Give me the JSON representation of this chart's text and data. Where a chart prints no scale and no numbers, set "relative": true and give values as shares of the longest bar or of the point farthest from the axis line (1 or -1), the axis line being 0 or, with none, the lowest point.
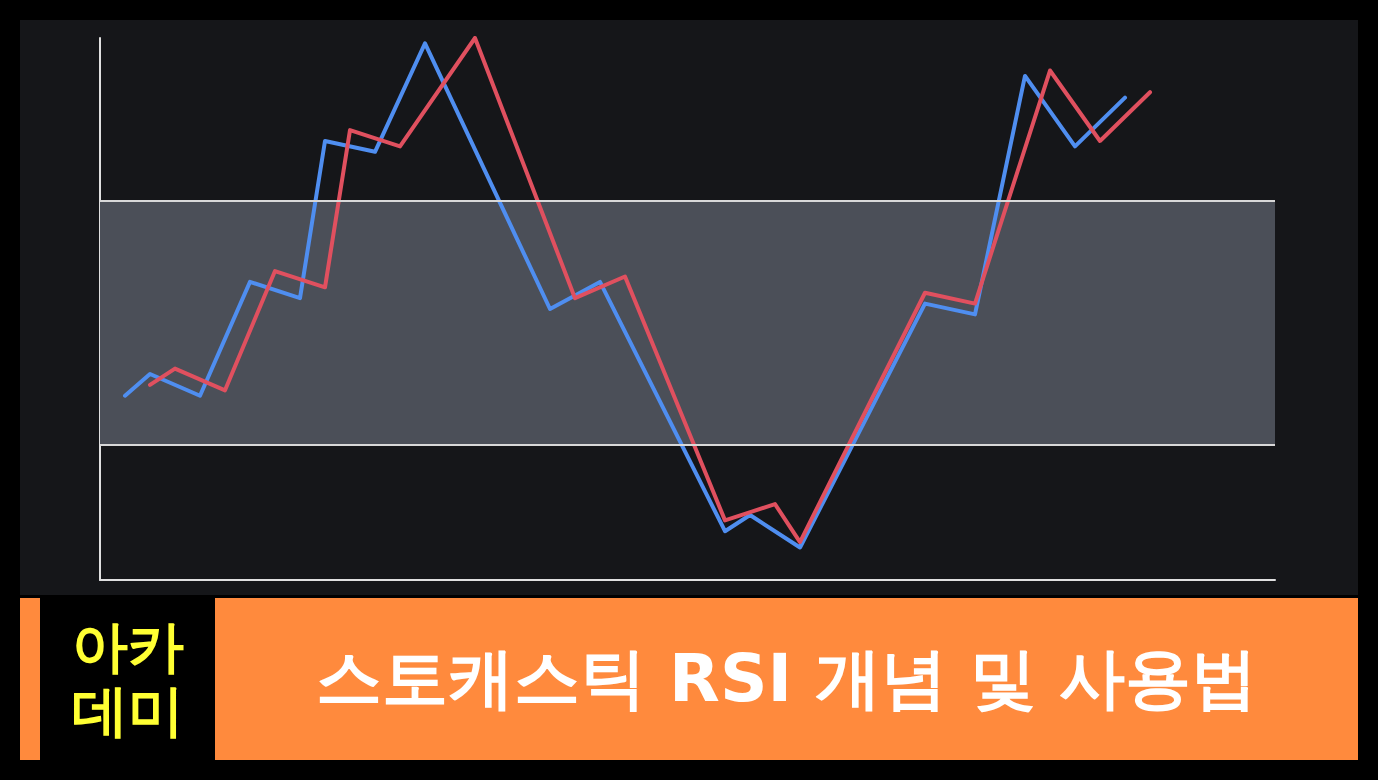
{
  "chart_data": {
    "type": "line",
    "title": "스토캐스틱 RSI 개념 및 사용법",
    "annotations": [
      "아카데미"
    ],
    "relative": true,
    "categories": [
      null,
      null,
      null,
      null,
      null,
      null,
      null,
      null,
      null,
      null,
      null,
      null,
      null,
      null,
      null,
      null,
      null,
      null,
      null,
      null,
      null,
      null,
      null,
      null,
      null,
      null,
      null,
      null,
      null,
      null,
      null,
      null,
      null,
      null,
      null,
      null,
      null,
      null,
      null,
      null,
      null,
      null,
      null,
      null,
      null,
      null,
      null,
      null
    ],
    "series": [
      {
        "color": "#4f8ef0",
        "values": [
          null,
          0.34,
          0.38,
          null,
          0.34,
          null,
          0.55,
          null,
          0.52,
          0.81,
          null,
          0.79,
          null,
          0.99,
          null,
          null,
          null,
          null,
          0.5,
          null,
          0.55,
          null,
          null,
          null,
          null,
          0.09,
          0.12,
          null,
          0.06,
          null,
          null,
          null,
          null,
          0.51,
          null,
          0.49,
          null,
          0.93,
          null,
          0.8,
          null,
          0.89,
          null,
          null,
          null,
          null,
          null,
          null
        ]
      },
      {
        "color": "#e0505f",
        "values": [
          null,
          null,
          0.36,
          0.39,
          null,
          0.35,
          null,
          0.57,
          null,
          0.54,
          0.83,
          null,
          0.8,
          null,
          null,
          1,
          null,
          null,
          null,
          0.52,
          null,
          0.56,
          null,
          null,
          null,
          0.11,
          null,
          0.14,
          0.07,
          null,
          null,
          null,
          null,
          0.53,
          null,
          0.51,
          null,
          null,
          0.94,
          null,
          0.81,
          null,
          0.9,
          null,
          null,
          null,
          null,
          null
        ]
      }
    ],
    "bands": [
      {
        "axis": "y",
        "from": 0.25,
        "to": 0.7,
        "color": "#4b4f58"
      }
    ],
    "ref_lines": [
      {
        "axis": "y",
        "value": 0.25,
        "color": "#d8d8d8"
      },
      {
        "axis": "y",
        "value": 0.7,
        "color": "#d8d8d8"
      }
    ],
    "grid": false,
    "line_style": "solid",
    "marker": "none"
  }
}
